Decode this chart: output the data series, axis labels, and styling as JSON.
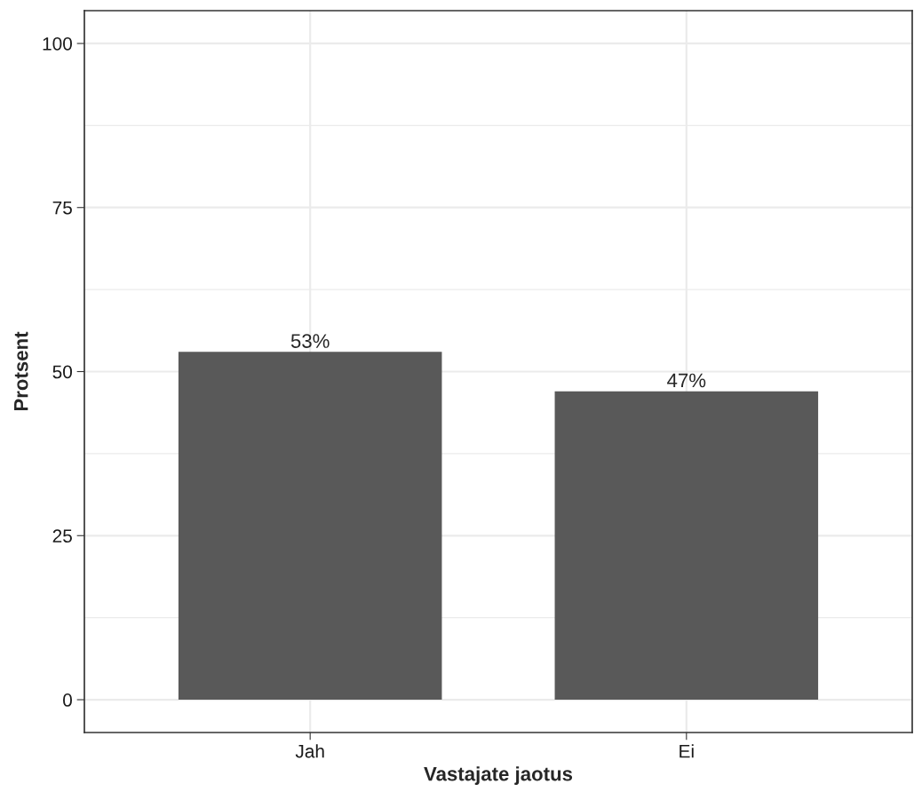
{
  "chart_data": {
    "type": "bar",
    "xlabel": "Vastajate jaotus",
    "ylabel": "Protsent",
    "categories": [
      "Jah",
      "Ei"
    ],
    "values": [
      53,
      47
    ],
    "value_labels": [
      "53%",
      "47%"
    ],
    "color": "#595959",
    "ylim": [
      -5,
      105
    ],
    "yticks": [
      0,
      25,
      50,
      75,
      100
    ],
    "grid": true
  }
}
